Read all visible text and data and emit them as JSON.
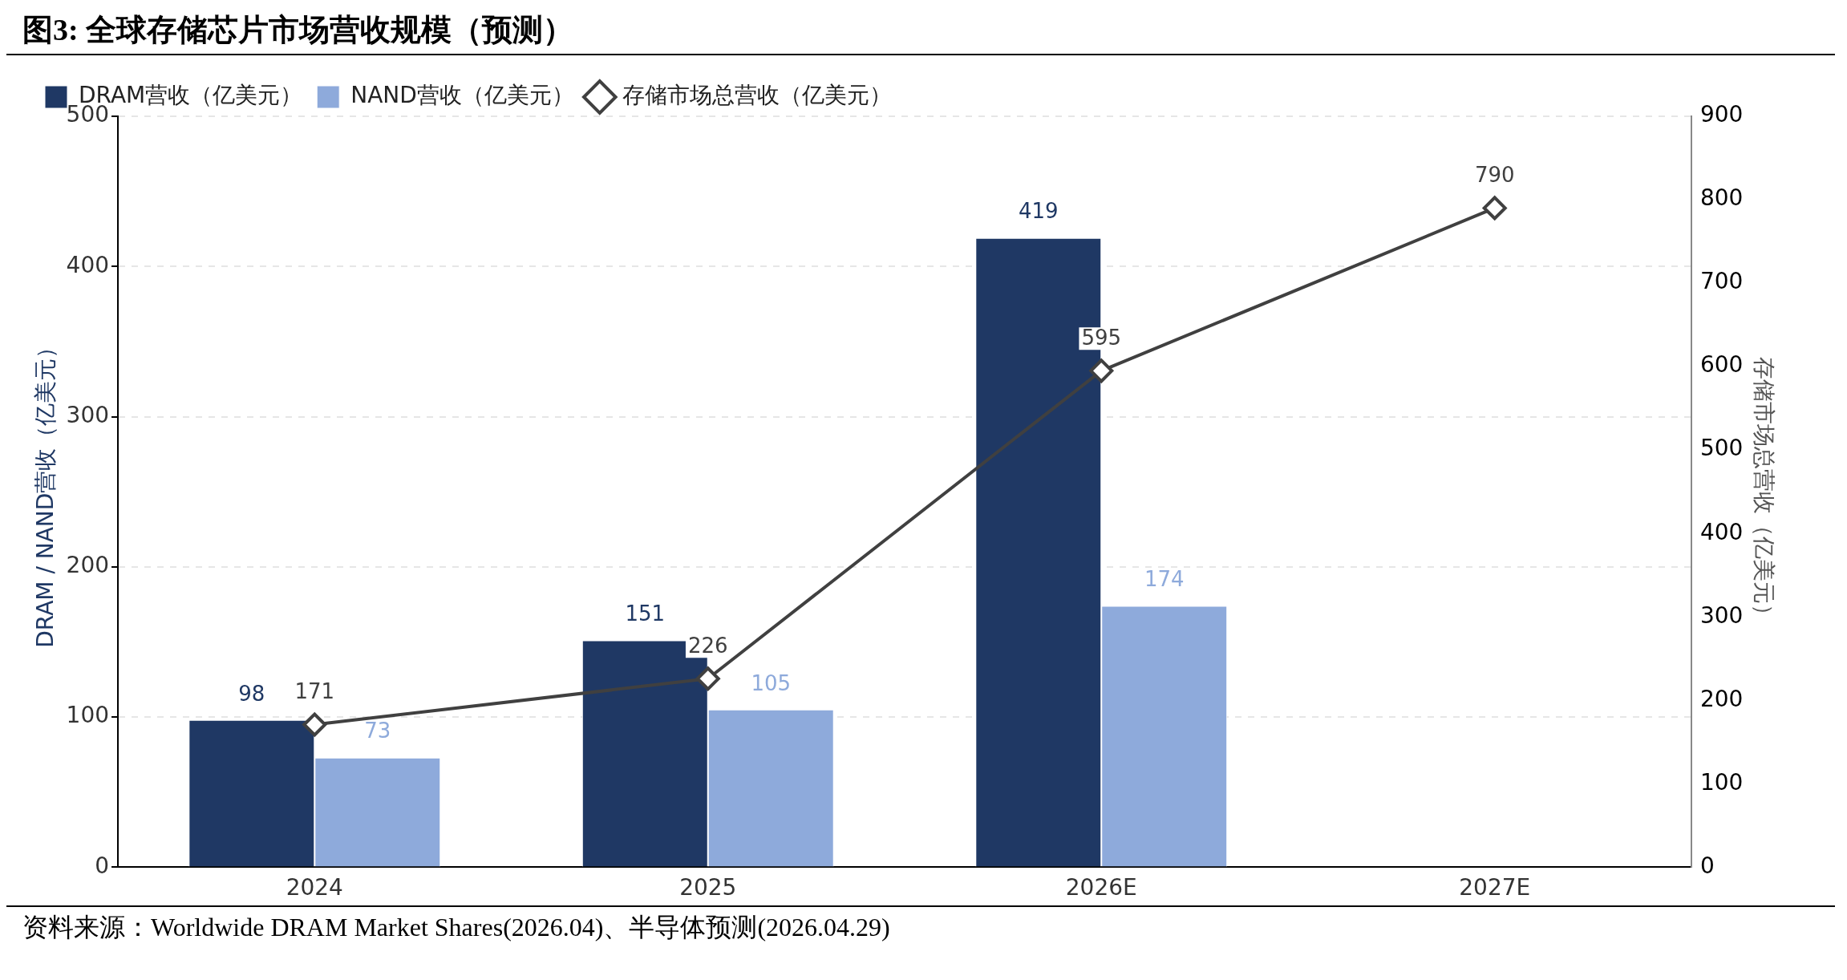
{
  "chart_data": {
    "type": "bar",
    "title": "图3:  全球存储芯片市场营收规模（预测）",
    "categories": [
      "2024",
      "2025",
      "2026E",
      "2027E"
    ],
    "series": [
      {
        "name": "DRAM营收（亿美元）",
        "color": "#1f3864",
        "values": [
          98,
          151,
          419,
          null
        ]
      },
      {
        "name": "NAND营收（亿美元）",
        "color": "#8eaadb",
        "values": [
          73,
          105,
          174,
          null
        ]
      },
      {
        "name": "存储市场总营收（亿美元）",
        "type": "line",
        "axis": "y2",
        "color": "#404040",
        "marker": "diamond",
        "values": [
          171,
          226,
          595,
          790
        ]
      }
    ],
    "ylabel": "DRAM / NAND营收（亿美元）",
    "y2label": "存储市场总营收（亿美元）",
    "ylim": [
      0,
      500
    ],
    "yticks": [
      0,
      100,
      200,
      300,
      400,
      500
    ],
    "y2lim": [
      0,
      900
    ],
    "y2ticks": [
      0,
      100,
      200,
      300,
      400,
      500,
      600,
      700,
      800,
      900
    ],
    "grid": "y",
    "legend": "top left",
    "data_labels": true,
    "annotations": [
      "资料来源：Worldwide DRAM Market Shares(2026.04)、半导体预测(2026.04.29)"
    ]
  }
}
